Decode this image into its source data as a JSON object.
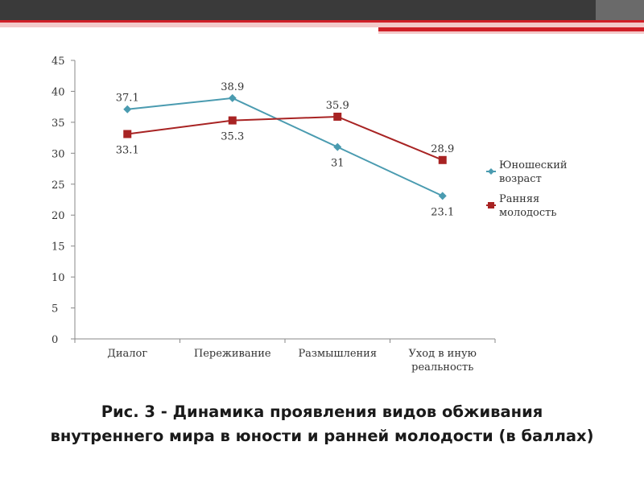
{
  "colors": {
    "series1": "#4a9bb0",
    "series2": "#a82323",
    "top_bar_dark": "#3a3a3a",
    "top_bar_red": "#d01f27",
    "axis": "#888888"
  },
  "caption": {
    "line1": "Рис. 3 - Динамика проявления видов обживания",
    "line2": "внутреннего мира в юности и ранней молодости (в баллах)"
  },
  "chart_data": {
    "type": "line",
    "categories": [
      "Диалог",
      "Переживание",
      "Размышления",
      "Уход в иную реальность"
    ],
    "category_lines": [
      [
        "Диалог"
      ],
      [
        "Переживание"
      ],
      [
        "Размышления"
      ],
      [
        "Уход в иную",
        "реальность"
      ]
    ],
    "series": [
      {
        "name": "Юношеский возраст",
        "legend_lines": [
          "Юношеский",
          "возраст"
        ],
        "values": [
          37.1,
          38.9,
          31,
          23.1
        ],
        "labels": [
          "37.1",
          "38.9",
          "31",
          "23.1"
        ],
        "label_positions": [
          "above",
          "above",
          "below",
          "below"
        ],
        "marker": "diamond",
        "color": "#4a9bb0"
      },
      {
        "name": "Ранняя молодость",
        "legend_lines": [
          "Ранняя",
          "молодость"
        ],
        "values": [
          33.1,
          35.3,
          35.9,
          28.9
        ],
        "labels": [
          "33.1",
          "35.3",
          "35.9",
          "28.9"
        ],
        "label_positions": [
          "below",
          "below",
          "above",
          "above"
        ],
        "marker": "square",
        "color": "#a82323"
      }
    ],
    "ylim": [
      0,
      45
    ],
    "yticks": [
      0,
      5,
      10,
      15,
      20,
      25,
      30,
      35,
      40,
      45
    ],
    "grid": false,
    "legend": "right",
    "title": "",
    "xlabel": "",
    "ylabel": ""
  }
}
